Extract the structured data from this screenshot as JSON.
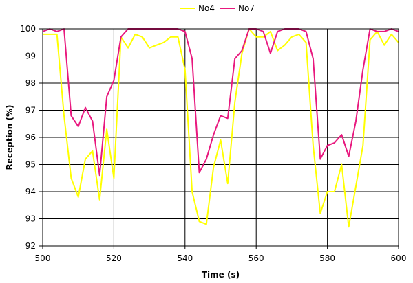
{
  "chart_data": {
    "type": "line",
    "xlabel": "Time (s)",
    "ylabel": "Reception (%)",
    "xlim": [
      500,
      600
    ],
    "ylim": [
      92,
      100
    ],
    "xticks": [
      500,
      520,
      540,
      560,
      580,
      600
    ],
    "yticks": [
      92,
      93,
      94,
      95,
      96,
      97,
      98,
      99,
      100
    ],
    "grid": true,
    "legend": "top-center",
    "series": [
      {
        "name": "No4",
        "color": "#ffff00",
        "x": [
          500,
          502,
          504,
          506,
          508,
          510,
          512,
          514,
          516,
          518,
          520,
          522,
          524,
          526,
          528,
          530,
          532,
          534,
          536,
          538,
          540,
          542,
          544,
          546,
          548,
          550,
          552,
          554,
          556,
          558,
          560,
          562,
          564,
          566,
          568,
          570,
          572,
          574,
          576,
          578,
          580,
          582,
          584,
          586,
          588,
          590,
          592,
          594,
          596,
          598,
          600
        ],
        "y": [
          99.8,
          99.8,
          99.8,
          96.8,
          94.5,
          93.8,
          95.2,
          95.5,
          93.7,
          96.3,
          94.5,
          99.7,
          99.3,
          99.8,
          99.7,
          99.3,
          99.4,
          99.5,
          99.7,
          99.7,
          98.5,
          94.0,
          92.9,
          92.8,
          94.9,
          95.9,
          94.3,
          97.3,
          99.1,
          100.0,
          99.7,
          99.7,
          99.9,
          99.2,
          99.4,
          99.7,
          99.8,
          99.5,
          95.7,
          93.2,
          94.0,
          94.0,
          95.0,
          92.7,
          94.2,
          95.7,
          99.6,
          99.9,
          99.4,
          99.8,
          99.5
        ]
      },
      {
        "name": "No7",
        "color": "#e8187e",
        "x": [
          500,
          502,
          504,
          506,
          508,
          510,
          512,
          514,
          516,
          518,
          520,
          522,
          524,
          526,
          528,
          530,
          532,
          534,
          536,
          538,
          540,
          542,
          544,
          546,
          548,
          550,
          552,
          554,
          556,
          558,
          560,
          562,
          564,
          566,
          568,
          570,
          572,
          574,
          576,
          578,
          580,
          582,
          584,
          586,
          588,
          590,
          592,
          594,
          596,
          598,
          600
        ],
        "y": [
          99.9,
          100.0,
          99.9,
          100.0,
          96.8,
          96.4,
          97.1,
          96.6,
          94.6,
          97.5,
          98.1,
          99.7,
          100.0,
          100.0,
          100.0,
          100.0,
          100.0,
          100.0,
          100.0,
          100.0,
          99.9,
          98.9,
          94.7,
          95.2,
          96.1,
          96.8,
          96.7,
          98.9,
          99.2,
          100.0,
          100.0,
          99.9,
          99.1,
          99.9,
          100.0,
          100.0,
          100.0,
          99.9,
          98.9,
          95.2,
          95.7,
          95.8,
          96.1,
          95.3,
          96.6,
          98.5,
          100.0,
          99.9,
          99.9,
          100.0,
          99.9
        ]
      }
    ]
  }
}
